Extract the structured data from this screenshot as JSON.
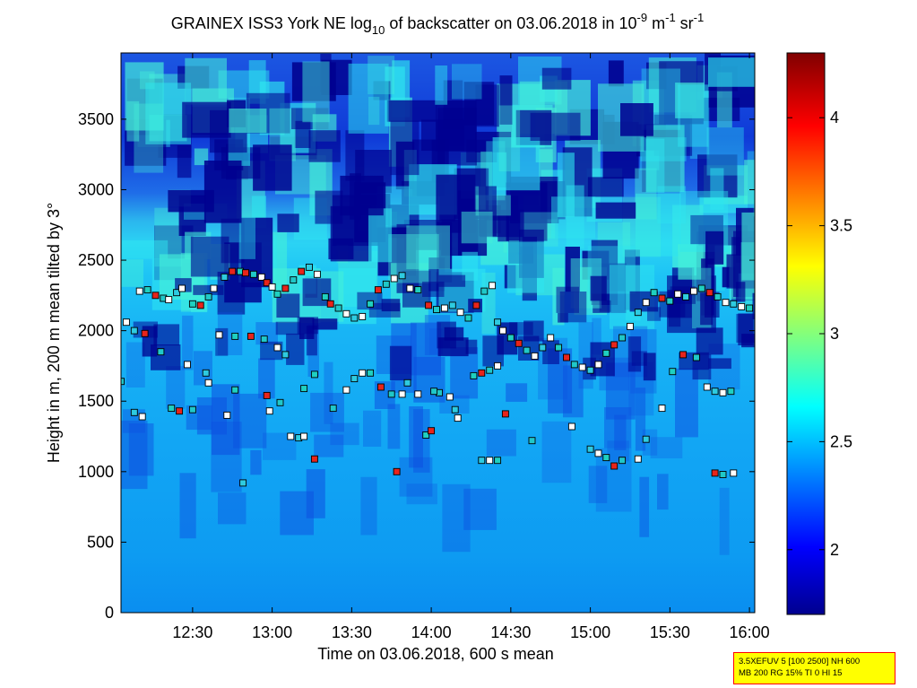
{
  "chart_data": {
    "type": "heatmap",
    "title": {
      "main": "GRAINEX ISS3 York NE log",
      "main_sub": "10",
      "mid": " of backscatter on 03.06.2018 in 10",
      "mid_sup": "-9",
      "unit1": " m",
      "unit1_sup": "-1",
      "unit2": " sr",
      "unit2_sup": "-1"
    },
    "xlabel": "Time on 03.06.2018, 600 s mean",
    "ylabel": "Height in m, 200 m mean tilted by 3°",
    "xlim": [
      "12:03",
      "16:02"
    ],
    "ylim": [
      0,
      3970
    ],
    "x_ticks": [
      "12:30",
      "13:00",
      "13:30",
      "14:00",
      "14:30",
      "15:00",
      "15:30",
      "16:00"
    ],
    "y_ticks": [
      "0",
      "500",
      "1000",
      "1500",
      "2000",
      "2500",
      "3000",
      "3500"
    ],
    "colorbar": {
      "range": [
        1.7,
        4.3
      ],
      "ticks": [
        "2",
        "2.5",
        "3",
        "3.5",
        "4"
      ],
      "colormap": "jet"
    },
    "markers": {
      "points": [
        [
          "12:03",
          1640
        ],
        [
          "12:05",
          2060
        ],
        [
          "12:08",
          2000
        ],
        [
          "12:10",
          2280
        ],
        [
          "12:13",
          2290
        ],
        [
          "12:16",
          2250
        ],
        [
          "12:19",
          2230
        ],
        [
          "12:21",
          2220
        ],
        [
          "12:24",
          2270
        ],
        [
          "12:26",
          2300
        ],
        [
          "12:30",
          2190
        ],
        [
          "12:33",
          2180
        ],
        [
          "12:36",
          2240
        ],
        [
          "12:38",
          2300
        ],
        [
          "12:42",
          2380
        ],
        [
          "12:45",
          2420
        ],
        [
          "12:48",
          2420
        ],
        [
          "12:50",
          2410
        ],
        [
          "12:53",
          2400
        ],
        [
          "12:56",
          2380
        ],
        [
          "12:58",
          2340
        ],
        [
          "13:00",
          2310
        ],
        [
          "13:02",
          2260
        ],
        [
          "13:05",
          2300
        ],
        [
          "13:08",
          2360
        ],
        [
          "13:11",
          2420
        ],
        [
          "13:14",
          2450
        ],
        [
          "13:17",
          2400
        ],
        [
          "13:20",
          2240
        ],
        [
          "13:22",
          2190
        ],
        [
          "13:25",
          2160
        ],
        [
          "13:28",
          2120
        ],
        [
          "13:31",
          2090
        ],
        [
          "13:34",
          2100
        ],
        [
          "13:37",
          2190
        ],
        [
          "13:40",
          2290
        ],
        [
          "13:43",
          2330
        ],
        [
          "13:46",
          2370
        ],
        [
          "13:49",
          2390
        ],
        [
          "13:52",
          2300
        ],
        [
          "13:55",
          2290
        ],
        [
          "13:59",
          2180
        ],
        [
          "14:02",
          2150
        ],
        [
          "14:05",
          2160
        ],
        [
          "14:08",
          2180
        ],
        [
          "14:11",
          2130
        ],
        [
          "14:14",
          2090
        ],
        [
          "14:17",
          2180
        ],
        [
          "14:20",
          2280
        ],
        [
          "14:23",
          2320
        ],
        [
          "14:25",
          2060
        ],
        [
          "14:27",
          2000
        ],
        [
          "14:30",
          1950
        ],
        [
          "14:33",
          1910
        ],
        [
          "14:36",
          1860
        ],
        [
          "14:39",
          1820
        ],
        [
          "14:42",
          1880
        ],
        [
          "14:45",
          1950
        ],
        [
          "14:48",
          1880
        ],
        [
          "14:51",
          1810
        ],
        [
          "14:54",
          1760
        ],
        [
          "14:57",
          1740
        ],
        [
          "15:00",
          1720
        ],
        [
          "15:03",
          1760
        ],
        [
          "15:06",
          1840
        ],
        [
          "15:09",
          1900
        ],
        [
          "15:12",
          1950
        ],
        [
          "15:15",
          2030
        ],
        [
          "15:18",
          2130
        ],
        [
          "15:21",
          2200
        ],
        [
          "15:24",
          2270
        ],
        [
          "15:27",
          2230
        ],
        [
          "15:30",
          2210
        ],
        [
          "15:33",
          2260
        ],
        [
          "15:36",
          2240
        ],
        [
          "15:39",
          2280
        ],
        [
          "15:42",
          2300
        ],
        [
          "15:45",
          2270
        ],
        [
          "15:48",
          2240
        ],
        [
          "15:51",
          2200
        ],
        [
          "15:54",
          2190
        ],
        [
          "15:57",
          2170
        ],
        [
          "16:00",
          2160
        ],
        [
          "12:12",
          1980
        ],
        [
          "12:18",
          1850
        ],
        [
          "12:28",
          1760
        ],
        [
          "12:35",
          1700
        ],
        [
          "12:40",
          1970
        ],
        [
          "12:46",
          1960
        ],
        [
          "12:52",
          1960
        ],
        [
          "12:57",
          1940
        ],
        [
          "13:02",
          1880
        ],
        [
          "13:05",
          1830
        ],
        [
          "12:36",
          1630
        ],
        [
          "12:46",
          1580
        ],
        [
          "12:58",
          1540
        ],
        [
          "13:03",
          1490
        ],
        [
          "13:07",
          1250
        ],
        [
          "13:10",
          1240
        ],
        [
          "13:12",
          1250
        ],
        [
          "13:16",
          1690
        ],
        [
          "13:16",
          1090
        ],
        [
          "13:23",
          1450
        ],
        [
          "13:28",
          1580
        ],
        [
          "13:31",
          1660
        ],
        [
          "13:34",
          1700
        ],
        [
          "13:37",
          1700
        ],
        [
          "13:41",
          1600
        ],
        [
          "13:45",
          1550
        ],
        [
          "13:49",
          1550
        ],
        [
          "13:51",
          1630
        ],
        [
          "13:55",
          1550
        ],
        [
          "13:58",
          1260
        ],
        [
          "14:00",
          1290
        ],
        [
          "14:03",
          1560
        ],
        [
          "14:07",
          1530
        ],
        [
          "14:09",
          1440
        ],
        [
          "14:10",
          1380
        ],
        [
          "14:16",
          1680
        ],
        [
          "14:19",
          1700
        ],
        [
          "14:22",
          1720
        ],
        [
          "14:25",
          1750
        ],
        [
          "14:19",
          1080
        ],
        [
          "14:22",
          1080
        ],
        [
          "14:25",
          1080
        ],
        [
          "14:28",
          1410
        ],
        [
          "14:38",
          1220
        ],
        [
          "14:53",
          1320
        ],
        [
          "15:00",
          1160
        ],
        [
          "15:03",
          1130
        ],
        [
          "15:06",
          1100
        ],
        [
          "15:09",
          1040
        ],
        [
          "15:12",
          1080
        ],
        [
          "15:18",
          1090
        ],
        [
          "15:21",
          1230
        ],
        [
          "15:27",
          1450
        ],
        [
          "15:31",
          1710
        ],
        [
          "15:35",
          1830
        ],
        [
          "15:40",
          1810
        ],
        [
          "15:44",
          1600
        ],
        [
          "15:47",
          1570
        ],
        [
          "15:50",
          1560
        ],
        [
          "15:53",
          1570
        ],
        [
          "15:47",
          990
        ],
        [
          "15:50",
          980
        ],
        [
          "15:54",
          990
        ],
        [
          "12:08",
          1420
        ],
        [
          "12:11",
          1390
        ],
        [
          "12:22",
          1450
        ],
        [
          "12:25",
          1430
        ],
        [
          "12:30",
          1440
        ],
        [
          "12:43",
          1400
        ],
        [
          "12:49",
          920
        ],
        [
          "12:59",
          1430
        ],
        [
          "13:12",
          1590
        ],
        [
          "13:47",
          1000
        ],
        [
          "14:01",
          1570
        ]
      ]
    }
  }
}
